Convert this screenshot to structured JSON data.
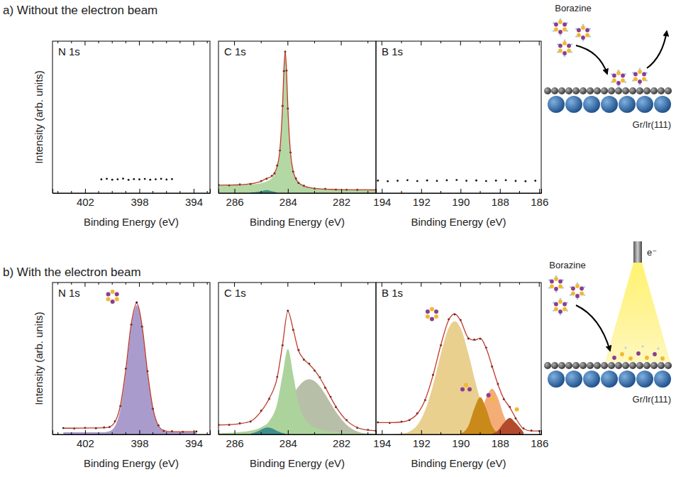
{
  "chart_data": [
    {
      "type": "line",
      "title": "N 1s",
      "xlabel": "Binding Energy (eV)",
      "ylabel": "Intensity (arb. units)",
      "xlim": [
        404.4,
        392.8
      ],
      "xticks": [
        402,
        398,
        394
      ],
      "xminorticks": [
        404,
        403,
        401,
        400,
        399,
        397,
        396,
        395,
        393
      ],
      "ylim": [
        0,
        1
      ],
      "tick_labels": "x",
      "x": [
        400.8,
        400.4,
        400.0,
        399.6,
        399.2,
        398.8,
        398.4,
        398.0,
        397.6,
        397.2,
        396.8,
        396.4,
        396.0,
        395.6
      ],
      "series": [
        {
          "type": "scatter",
          "marker": "dot",
          "color": "#111111",
          "values": [
            0.09,
            0.094,
            0.088,
            0.091,
            0.095,
            0.087,
            0.092,
            0.09,
            0.093,
            0.088,
            0.091,
            0.094,
            0.089,
            0.092
          ]
        }
      ]
    },
    {
      "type": "line",
      "title": "C 1s",
      "xlabel": "Binding Energy (eV)",
      "xlim": [
        286.6,
        280.7
      ],
      "xticks": [
        286,
        284,
        282
      ],
      "xminorticks": [
        285,
        283,
        281
      ],
      "ylim": [
        0,
        1
      ],
      "tick_labels": "x",
      "x": [
        286.6,
        286.2,
        285.8,
        285.4,
        285.0,
        284.8,
        284.6,
        284.5,
        284.4,
        284.3,
        284.2,
        284.15,
        284.1,
        284.05,
        284.0,
        283.9,
        283.8,
        283.7,
        283.6,
        283.4,
        283.0,
        282.6,
        282.2,
        281.8,
        281.4,
        280.7
      ],
      "series": [
        {
          "type": "area",
          "color": "#b4d8a4",
          "values": [
            0.052,
            0.053,
            0.055,
            0.058,
            0.066,
            0.076,
            0.099,
            0.124,
            0.174,
            0.283,
            0.57,
            0.807,
            0.935,
            0.802,
            0.56,
            0.263,
            0.144,
            0.094,
            0.069,
            0.046,
            0.031,
            0.026,
            0.024,
            0.022,
            0.022,
            0.021
          ]
        },
        {
          "type": "area",
          "color": "#3e8e8c",
          "x": [
            285.4,
            285.0,
            284.8,
            284.6,
            284.4
          ],
          "values": [
            0.003,
            0.012,
            0.02,
            0.012,
            0.004
          ]
        },
        {
          "type": "scatter",
          "marker": "dot",
          "color": "#111111",
          "values": [
            0.054,
            0.051,
            0.056,
            0.06,
            0.079,
            0.094,
            0.113,
            0.13,
            0.181,
            0.28,
            0.574,
            0.803,
            0.93,
            0.806,
            0.556,
            0.267,
            0.141,
            0.096,
            0.067,
            0.048,
            0.03,
            0.027,
            0.023,
            0.022,
            0.021,
            0.022
          ]
        },
        {
          "type": "line",
          "line_style": "solid",
          "color": "#c0392b",
          "values": [
            0.052,
            0.053,
            0.055,
            0.061,
            0.078,
            0.096,
            0.111,
            0.132,
            0.178,
            0.283,
            0.57,
            0.807,
            0.935,
            0.802,
            0.56,
            0.263,
            0.144,
            0.094,
            0.069,
            0.046,
            0.031,
            0.026,
            0.024,
            0.022,
            0.022,
            0.021
          ]
        }
      ]
    },
    {
      "type": "line",
      "title": "B 1s",
      "xlabel": "Binding Energy (eV)",
      "xlim": [
        194.3,
        185.9
      ],
      "xticks": [
        194,
        192,
        190,
        188,
        186
      ],
      "xminorticks": [
        193,
        191,
        189,
        187
      ],
      "ylim": [
        0,
        1
      ],
      "tick_labels": "x",
      "x": [
        194.2,
        193.7,
        193.2,
        192.7,
        192.2,
        191.7,
        191.2,
        190.7,
        190.2,
        189.7,
        189.2,
        188.7,
        188.2,
        187.7,
        187.2,
        186.7,
        186.2
      ],
      "series": [
        {
          "type": "scatter",
          "marker": "dot",
          "color": "#111111",
          "values": [
            0.082,
            0.078,
            0.081,
            0.085,
            0.079,
            0.083,
            0.08,
            0.084,
            0.086,
            0.081,
            0.083,
            0.079,
            0.082,
            0.085,
            0.08,
            0.078,
            0.081
          ]
        }
      ]
    },
    {
      "type": "line",
      "title": "N 1s",
      "xlabel": "Binding Energy (eV)",
      "ylabel": "Intensity (arb. units)",
      "xlim": [
        404.4,
        392.8
      ],
      "xticks": [
        402,
        398,
        394
      ],
      "xminorticks": [
        404,
        403,
        401,
        400,
        399,
        397,
        396,
        395,
        393
      ],
      "ylim": [
        0,
        1.1
      ],
      "tick_labels": "x",
      "x": [
        403.6,
        402.8,
        402.0,
        401.2,
        400.6,
        400.2,
        399.8,
        399.4,
        399.0,
        398.6,
        398.2,
        397.8,
        397.4,
        397.0,
        396.6,
        396.2,
        395.6,
        394.8,
        393.8
      ],
      "series": [
        {
          "type": "area",
          "color": "#a99ccd",
          "values": [
            0.015,
            0.015,
            0.015,
            0.015,
            0.016,
            0.023,
            0.059,
            0.183,
            0.447,
            0.777,
            0.935,
            0.777,
            0.447,
            0.183,
            0.059,
            0.023,
            0.015,
            0.015,
            0.015
          ]
        },
        {
          "type": "scatter",
          "marker": "dot",
          "color": "#111111",
          "values": [
            0.046,
            0.043,
            0.047,
            0.045,
            0.05,
            0.053,
            0.094,
            0.205,
            0.476,
            0.795,
            0.955,
            0.78,
            0.458,
            0.185,
            0.066,
            0.026,
            0.022,
            0.019,
            0.021
          ]
        },
        {
          "type": "line",
          "line_style": "solid",
          "color": "#c0392b",
          "values": [
            0.045,
            0.045,
            0.046,
            0.047,
            0.048,
            0.055,
            0.09,
            0.21,
            0.47,
            0.8,
            0.95,
            0.785,
            0.452,
            0.188,
            0.064,
            0.028,
            0.02,
            0.02,
            0.02
          ]
        }
      ]
    },
    {
      "type": "line",
      "title": "C 1s",
      "xlabel": "Binding Energy (eV)",
      "xlim": [
        286.6,
        280.7
      ],
      "xticks": [
        286,
        284,
        282
      ],
      "xminorticks": [
        285,
        283,
        281
      ],
      "ylim": [
        0,
        1.1
      ],
      "tick_labels": "x",
      "x": [
        286.6,
        286.2,
        285.8,
        285.4,
        285.0,
        284.7,
        284.4,
        284.2,
        284.0,
        283.8,
        283.6,
        283.4,
        283.2,
        283.0,
        282.8,
        282.6,
        282.4,
        282.2,
        281.8,
        281.4,
        281.0,
        280.7
      ],
      "series": [
        {
          "type": "area",
          "color": "#b8bfa9",
          "values": [
            0,
            0,
            0.001,
            0.005,
            0.022,
            0.054,
            0.111,
            0.164,
            0.226,
            0.29,
            0.347,
            0.386,
            0.4,
            0.386,
            0.347,
            0.29,
            0.226,
            0.164,
            0.07,
            0.022,
            0.005,
            0.002
          ]
        },
        {
          "type": "area",
          "color": "#acd39c",
          "values": [
            0.008,
            0.011,
            0.017,
            0.027,
            0.051,
            0.096,
            0.223,
            0.43,
            0.62,
            0.43,
            0.223,
            0.124,
            0.077,
            0.051,
            0.037,
            0.027,
            0.021,
            0.017,
            0.011,
            0.008,
            0.006,
            0.005
          ]
        },
        {
          "type": "area",
          "color": "#3e8e8c",
          "x": [
            285.4,
            285.1,
            284.9,
            284.75,
            284.6,
            284.4,
            284.1
          ],
          "values": [
            0.005,
            0.025,
            0.044,
            0.05,
            0.044,
            0.025,
            0.005
          ]
        },
        {
          "type": "scatter",
          "marker": "dot",
          "color": "#111111",
          "values": [
            0.07,
            0.069,
            0.08,
            0.093,
            0.171,
            0.257,
            0.416,
            0.645,
            0.895,
            0.757,
            0.611,
            0.541,
            0.511,
            0.462,
            0.413,
            0.338,
            0.272,
            0.198,
            0.103,
            0.048,
            0.033,
            0.026
          ]
        },
        {
          "type": "line",
          "line_style": "solid",
          "color": "#c0392b",
          "values": [
            0.068,
            0.071,
            0.078,
            0.095,
            0.168,
            0.26,
            0.412,
            0.649,
            0.891,
            0.76,
            0.607,
            0.544,
            0.508,
            0.465,
            0.41,
            0.341,
            0.269,
            0.201,
            0.101,
            0.05,
            0.031,
            0.027
          ]
        }
      ]
    },
    {
      "type": "line",
      "title": "B 1s",
      "xlabel": "Binding Energy (eV)",
      "xlim": [
        194.3,
        185.9
      ],
      "xticks": [
        194,
        192,
        190,
        188,
        186
      ],
      "xminorticks": [
        193,
        191,
        189,
        187
      ],
      "ylim": [
        0,
        1.1
      ],
      "tick_labels": "x",
      "x": [
        194.2,
        193.6,
        193.0,
        192.6,
        192.2,
        191.8,
        191.4,
        191.0,
        190.6,
        190.3,
        190.0,
        189.6,
        189.3,
        189.0,
        188.7,
        188.4,
        188.1,
        187.8,
        187.5,
        187.2,
        186.8,
        186.4,
        186.0
      ],
      "series": [
        {
          "type": "area",
          "color": "#e9d08f",
          "values": [
            0,
            0,
            0.005,
            0.021,
            0.067,
            0.173,
            0.355,
            0.584,
            0.771,
            0.82,
            0.771,
            0.584,
            0.41,
            0.254,
            0.139,
            0.067,
            0.029,
            0.011,
            0.004,
            0.001,
            0,
            0,
            0
          ]
        },
        {
          "type": "area",
          "color": "#f5ad78",
          "x": [
            189.6,
            189.3,
            189.0,
            188.7,
            188.4,
            188.1,
            187.8,
            187.5,
            187.2
          ],
          "values": [
            0.009,
            0.045,
            0.136,
            0.264,
            0.33,
            0.264,
            0.136,
            0.045,
            0.009
          ]
        },
        {
          "type": "area",
          "color": "#c98a1a",
          "x": [
            190.0,
            189.6,
            189.3,
            189.0,
            188.7,
            188.4,
            188.1
          ],
          "values": [
            0.005,
            0.062,
            0.187,
            0.27,
            0.187,
            0.062,
            0.01
          ]
        },
        {
          "type": "area",
          "color": "#b34a2c",
          "x": [
            188.4,
            188.1,
            187.8,
            187.5,
            187.2,
            186.8
          ],
          "values": [
            0.004,
            0.028,
            0.083,
            0.12,
            0.083,
            0.016
          ]
        },
        {
          "type": "scatter",
          "marker": "dot",
          "color": "#111111",
          "values": [
            0.087,
            0.083,
            0.092,
            0.103,
            0.152,
            0.248,
            0.431,
            0.645,
            0.833,
            0.869,
            0.828,
            0.694,
            0.686,
            0.693,
            0.628,
            0.491,
            0.365,
            0.255,
            0.199,
            0.116,
            0.043,
            0.027,
            0.024
          ]
        },
        {
          "type": "line",
          "line_style": "solid",
          "color": "#c0392b",
          "values": [
            0.085,
            0.085,
            0.09,
            0.105,
            0.149,
            0.251,
            0.427,
            0.649,
            0.829,
            0.873,
            0.824,
            0.698,
            0.682,
            0.697,
            0.624,
            0.495,
            0.361,
            0.258,
            0.196,
            0.119,
            0.041,
            0.025,
            0.025
          ]
        }
      ]
    }
  ],
  "figure": {
    "rows": [
      {
        "title": "a) Without the electron beam",
        "schematic": {
          "molecule": "Borazine",
          "substrate": "Gr/Ir(111)"
        }
      },
      {
        "title": "b) With the electron beam",
        "schematic": {
          "molecule": "Borazine",
          "substrate": "Gr/Ir(111)",
          "beam": "e⁻"
        }
      }
    ]
  }
}
